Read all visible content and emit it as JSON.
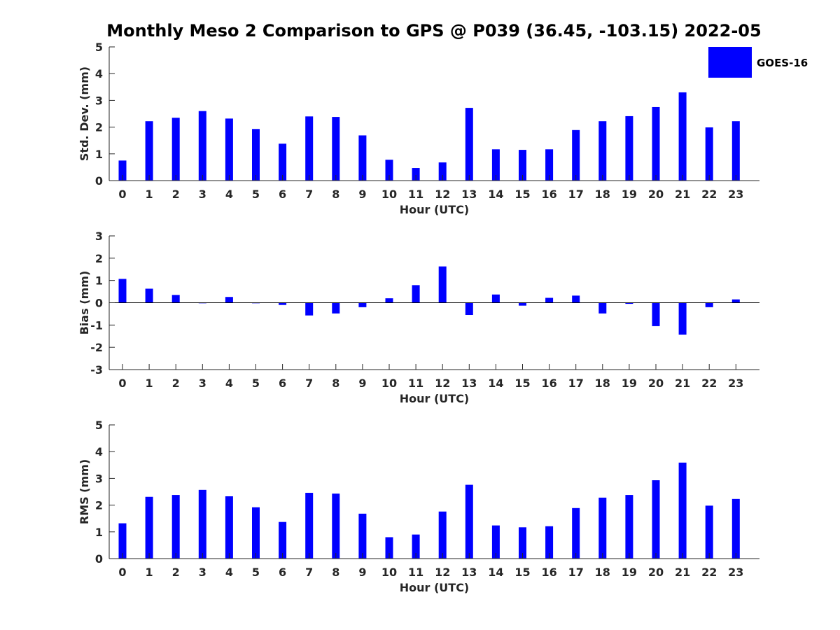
{
  "title": "Monthly Meso 2 Comparison to GPS @ P039 (36.45, -103.15) 2022-05",
  "legend": {
    "label": "GOES-16",
    "color": "#0000ff"
  },
  "chart_data": [
    {
      "type": "bar",
      "xlabel": "Hour (UTC)",
      "ylabel": "Std. Dev. (mm)",
      "ylim": [
        0,
        5
      ],
      "yticks": [
        0,
        1,
        2,
        3,
        4,
        5
      ],
      "categories": [
        "0",
        "1",
        "2",
        "3",
        "4",
        "5",
        "6",
        "7",
        "8",
        "9",
        "10",
        "11",
        "12",
        "13",
        "14",
        "15",
        "16",
        "17",
        "18",
        "19",
        "20",
        "21",
        "22",
        "23"
      ],
      "series": [
        {
          "name": "GOES-16",
          "values": [
            0.75,
            2.22,
            2.35,
            2.6,
            2.32,
            1.93,
            1.38,
            2.4,
            2.38,
            1.69,
            0.78,
            0.47,
            0.68,
            2.72,
            1.17,
            1.15,
            1.17,
            1.89,
            2.22,
            2.41,
            2.75,
            3.3,
            1.99,
            2.22
          ]
        }
      ],
      "grid": false
    },
    {
      "type": "bar",
      "xlabel": "Hour (UTC)",
      "ylabel": "Bias (mm)",
      "ylim": [
        -3,
        3
      ],
      "yticks": [
        -3,
        -2,
        -1,
        0,
        1,
        2,
        3
      ],
      "categories": [
        "0",
        "1",
        "2",
        "3",
        "4",
        "5",
        "6",
        "7",
        "8",
        "9",
        "10",
        "11",
        "12",
        "13",
        "14",
        "15",
        "16",
        "17",
        "18",
        "19",
        "20",
        "21",
        "22",
        "23"
      ],
      "series": [
        {
          "name": "GOES-16",
          "values": [
            1.07,
            0.63,
            0.35,
            -0.02,
            0.26,
            -0.02,
            -0.1,
            -0.57,
            -0.48,
            -0.2,
            0.2,
            0.79,
            1.63,
            -0.55,
            0.37,
            -0.13,
            0.22,
            0.32,
            -0.48,
            -0.05,
            -1.05,
            -1.43,
            -0.2,
            0.15
          ]
        }
      ],
      "grid": false
    },
    {
      "type": "bar",
      "xlabel": "Hour (UTC)",
      "ylabel": "RMS (mm)",
      "ylim": [
        0,
        5
      ],
      "yticks": [
        0,
        1,
        2,
        3,
        4,
        5
      ],
      "categories": [
        "0",
        "1",
        "2",
        "3",
        "4",
        "5",
        "6",
        "7",
        "8",
        "9",
        "10",
        "11",
        "12",
        "13",
        "14",
        "15",
        "16",
        "17",
        "18",
        "19",
        "20",
        "21",
        "22",
        "23"
      ],
      "series": [
        {
          "name": "GOES-16",
          "values": [
            1.32,
            2.31,
            2.38,
            2.57,
            2.33,
            1.92,
            1.37,
            2.46,
            2.43,
            1.68,
            0.8,
            0.9,
            1.76,
            2.76,
            1.24,
            1.17,
            1.21,
            1.89,
            2.28,
            2.38,
            2.93,
            3.59,
            1.98,
            2.23
          ]
        }
      ],
      "grid": false
    }
  ]
}
